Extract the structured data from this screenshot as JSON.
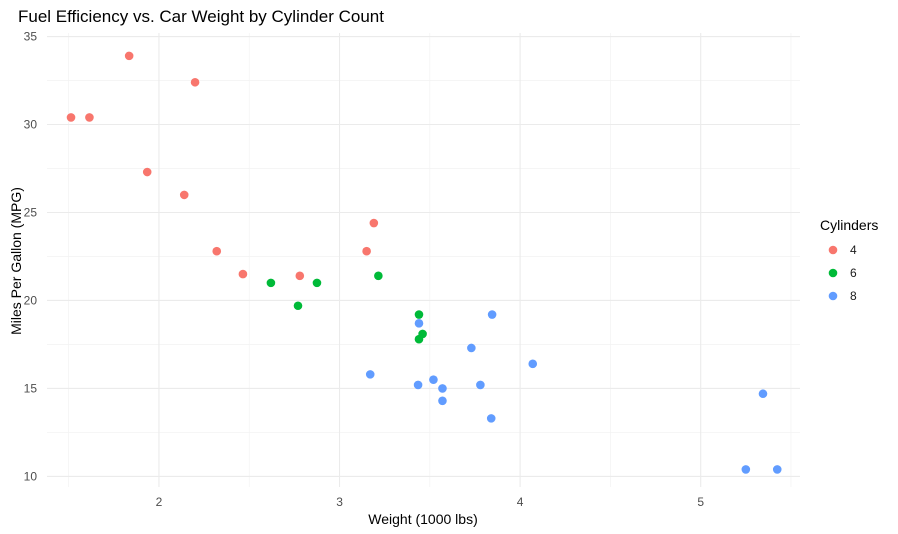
{
  "chart_data": {
    "type": "scatter",
    "title": "Fuel Efficiency vs. Car Weight by Cylinder Count",
    "xlabel": "Weight (1000 lbs)",
    "ylabel": "Miles Per Gallon (MPG)",
    "xlim": [
      1.38,
      5.55
    ],
    "ylim": [
      9.4,
      35.2
    ],
    "x_ticks": [
      2,
      3,
      4,
      5
    ],
    "y_ticks": [
      10,
      15,
      20,
      25,
      30,
      35
    ],
    "grid": true,
    "legend": {
      "title": "Cylinders",
      "placement": "right"
    },
    "series": [
      {
        "name": "4",
        "color": "#F8766D",
        "points": [
          {
            "x": 2.32,
            "y": 22.8
          },
          {
            "x": 3.19,
            "y": 24.4
          },
          {
            "x": 3.15,
            "y": 22.8
          },
          {
            "x": 2.2,
            "y": 32.4
          },
          {
            "x": 1.615,
            "y": 30.4
          },
          {
            "x": 1.835,
            "y": 33.9
          },
          {
            "x": 2.465,
            "y": 21.5
          },
          {
            "x": 1.935,
            "y": 27.3
          },
          {
            "x": 2.14,
            "y": 26.0
          },
          {
            "x": 1.513,
            "y": 30.4
          },
          {
            "x": 2.78,
            "y": 21.4
          }
        ]
      },
      {
        "name": "6",
        "color": "#00BA38",
        "points": [
          {
            "x": 2.62,
            "y": 21.0
          },
          {
            "x": 2.875,
            "y": 21.0
          },
          {
            "x": 3.215,
            "y": 21.4
          },
          {
            "x": 3.46,
            "y": 18.1
          },
          {
            "x": 3.44,
            "y": 19.2
          },
          {
            "x": 3.44,
            "y": 17.8
          },
          {
            "x": 2.77,
            "y": 19.7
          }
        ]
      },
      {
        "name": "8",
        "color": "#619CFF",
        "points": [
          {
            "x": 3.44,
            "y": 18.7
          },
          {
            "x": 3.57,
            "y": 14.3
          },
          {
            "x": 4.07,
            "y": 16.4
          },
          {
            "x": 3.73,
            "y": 17.3
          },
          {
            "x": 3.78,
            "y": 15.2
          },
          {
            "x": 5.25,
            "y": 10.4
          },
          {
            "x": 5.424,
            "y": 10.4
          },
          {
            "x": 5.345,
            "y": 14.7
          },
          {
            "x": 3.52,
            "y": 15.5
          },
          {
            "x": 3.435,
            "y": 15.2
          },
          {
            "x": 3.84,
            "y": 13.3
          },
          {
            "x": 3.845,
            "y": 19.2
          },
          {
            "x": 3.17,
            "y": 15.8
          },
          {
            "x": 3.57,
            "y": 15.0
          }
        ]
      }
    ]
  }
}
